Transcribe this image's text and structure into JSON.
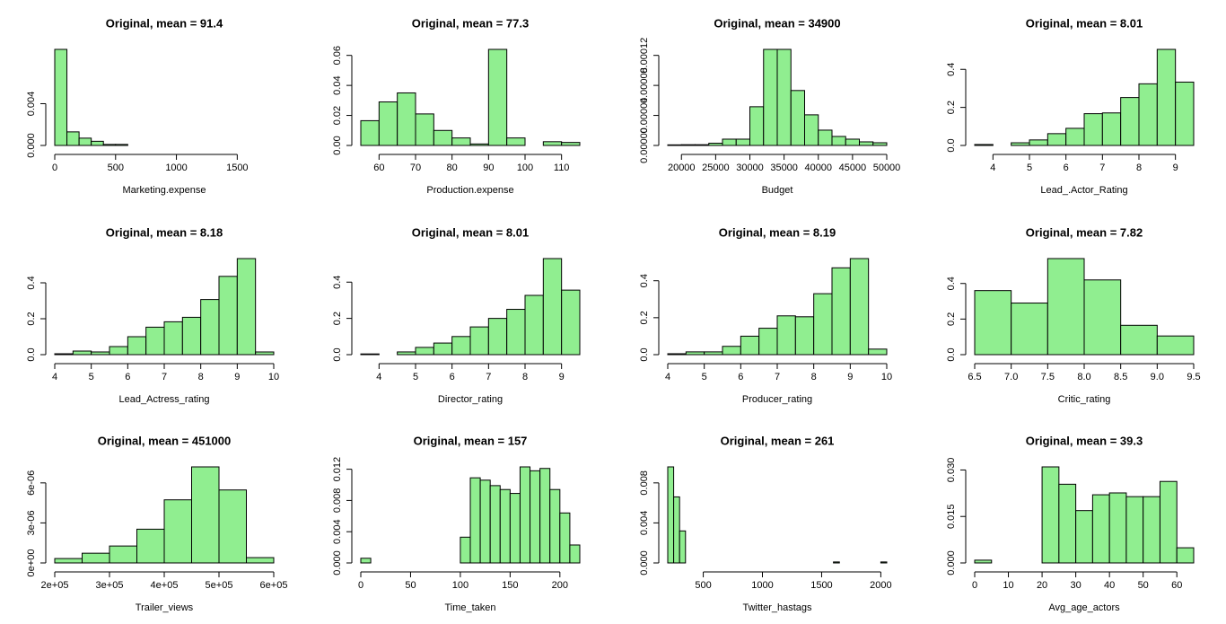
{
  "chart_data": [
    {
      "type": "histogram",
      "title": "Original, mean = 91.4",
      "xlabel": "Marketing.expense",
      "color": "#90ee90",
      "bins": [
        0,
        100,
        200,
        300,
        400,
        500,
        600,
        700,
        800,
        900,
        1000,
        1100,
        1200,
        1300,
        1400,
        1500,
        1600,
        1700,
        1800
      ],
      "values": [
        0.0092,
        0.0013,
        0.0007,
        0.0004,
        0.0001,
        0.0001,
        0,
        0,
        0,
        0,
        0,
        0,
        0,
        0,
        0,
        0,
        0,
        0
      ],
      "xlim": [
        0,
        1800
      ],
      "ylim": [
        0,
        0.0092
      ],
      "xticks": [
        0,
        500,
        1000,
        1500
      ],
      "yticks": [
        {
          "value": 0,
          "label": "0.000"
        },
        0.004
      ]
    },
    {
      "type": "histogram",
      "title": "Original, mean = 77.3",
      "xlabel": "Production.expense",
      "color": "#90ee90",
      "bins": [
        55,
        60,
        65,
        70,
        75,
        80,
        85,
        90,
        95,
        100,
        105,
        110,
        115
      ],
      "values": [
        0.0165,
        0.029,
        0.035,
        0.021,
        0.01,
        0.005,
        0.001,
        0.064,
        0.005,
        0,
        0.0025,
        0.002
      ],
      "xlim": [
        55,
        115
      ],
      "ylim": [
        0,
        0.064
      ],
      "xticks": [
        60,
        70,
        80,
        90,
        100,
        110
      ],
      "yticks": [
        {
          "value": 0,
          "label": "0.00"
        },
        0.02,
        0.04,
        0.06
      ]
    },
    {
      "type": "histogram",
      "title": "Original, mean = 34900",
      "xlabel": "Budget",
      "color": "#90ee90",
      "bins": [
        18000,
        20000,
        22000,
        24000,
        26000,
        28000,
        30000,
        32000,
        34000,
        36000,
        38000,
        40000,
        42000,
        44000,
        46000,
        48000,
        50000
      ],
      "values": [
        8e-07,
        1e-06,
        1e-06,
        3e-06,
        8.4e-06,
        8.4e-06,
        5.16e-05,
        0.000128,
        0.000128,
        7.32e-05,
        4.08e-05,
        2.04e-05,
        1.2e-05,
        8.4e-06,
        4.8e-06,
        3.6e-06
      ],
      "xlim": [
        18000,
        50000
      ],
      "ylim": [
        0,
        0.000128
      ],
      "xticks": [
        20000,
        25000,
        30000,
        35000,
        40000,
        45000,
        50000
      ],
      "yticks": [
        {
          "value": 0,
          "label": "0.00000"
        },
        4e-05,
        8e-05,
        0.00012
      ]
    },
    {
      "type": "histogram",
      "title": "Original, mean = 8.01",
      "xlabel": "Lead_.Actor_Rating",
      "color": "#90ee90",
      "bins": [
        3.5,
        4,
        4.5,
        5,
        5.5,
        6,
        6.5,
        7,
        7.5,
        8,
        8.5,
        9,
        9.5
      ],
      "values": [
        0.005,
        0,
        0.014,
        0.029,
        0.062,
        0.09,
        0.167,
        0.171,
        0.252,
        0.324,
        0.505,
        0.333
      ],
      "xlim": [
        3.5,
        9.5
      ],
      "ylim": [
        0,
        0.505
      ],
      "xticks": [
        4,
        5,
        6,
        7,
        8,
        9
      ],
      "yticks": [
        {
          "value": 0,
          "label": "0.0"
        },
        0.2,
        0.4
      ]
    },
    {
      "type": "histogram",
      "title": "Original, mean = 8.18",
      "xlabel": "Lead_Actress_rating",
      "color": "#90ee90",
      "bins": [
        4,
        4.5,
        5,
        5.5,
        6,
        6.5,
        7,
        7.5,
        8,
        8.5,
        9,
        9.5,
        10
      ],
      "values": [
        0.005,
        0.02,
        0.015,
        0.045,
        0.1,
        0.153,
        0.183,
        0.208,
        0.307,
        0.436,
        0.535,
        0.015
      ],
      "xlim": [
        4,
        10
      ],
      "ylim": [
        0,
        0.535
      ],
      "xticks": [
        4,
        5,
        6,
        7,
        8,
        9,
        10
      ],
      "yticks": [
        {
          "value": 0,
          "label": "0.0"
        },
        0.2,
        0.4
      ]
    },
    {
      "type": "histogram",
      "title": "Original, mean = 8.01",
      "xlabel": "Director_rating",
      "color": "#90ee90",
      "bins": [
        3.5,
        4,
        4.5,
        5,
        5.5,
        6,
        6.5,
        7,
        7.5,
        8,
        8.5,
        9,
        9.5
      ],
      "values": [
        0.004,
        0,
        0.015,
        0.04,
        0.064,
        0.1,
        0.153,
        0.2,
        0.25,
        0.327,
        0.53,
        0.356
      ],
      "xlim": [
        3.5,
        9.5
      ],
      "ylim": [
        0,
        0.53
      ],
      "xticks": [
        4,
        5,
        6,
        7,
        8,
        9
      ],
      "yticks": [
        {
          "value": 0,
          "label": "0.0"
        },
        0.2,
        0.4
      ]
    },
    {
      "type": "histogram",
      "title": "Original, mean = 8.19",
      "xlabel": "Producer_rating",
      "color": "#90ee90",
      "bins": [
        4,
        4.5,
        5,
        5.5,
        6,
        6.5,
        7,
        7.5,
        8,
        8.5,
        9,
        9.5,
        10
      ],
      "values": [
        0.005,
        0.015,
        0.015,
        0.045,
        0.1,
        0.143,
        0.21,
        0.205,
        0.33,
        0.47,
        0.52,
        0.03
      ],
      "xlim": [
        4,
        10
      ],
      "ylim": [
        0,
        0.52
      ],
      "xticks": [
        4,
        5,
        6,
        7,
        8,
        9,
        10
      ],
      "yticks": [
        {
          "value": 0,
          "label": "0.0"
        },
        0.2,
        0.4
      ]
    },
    {
      "type": "histogram",
      "title": "Original, mean = 7.82",
      "xlabel": "Critic_rating",
      "color": "#90ee90",
      "bins": [
        6.5,
        7,
        7.5,
        8,
        8.5,
        9,
        9.5
      ],
      "values": [
        0.36,
        0.29,
        0.54,
        0.42,
        0.165,
        0.105
      ],
      "xlim": [
        6.5,
        9.5
      ],
      "ylim": [
        0,
        0.54
      ],
      "xticks": [
        6.5,
        {
          "value": 7,
          "label": "7.0"
        },
        7.5,
        {
          "value": 8,
          "label": "8.0"
        },
        8.5,
        {
          "value": 9,
          "label": "9.0"
        },
        9.5
      ],
      "yticks": [
        {
          "value": 0,
          "label": "0.0"
        },
        0.2,
        0.4
      ]
    },
    {
      "type": "histogram",
      "title": "Original, mean = 451000",
      "xlabel": "Trailer_views",
      "color": "#90ee90",
      "bins": [
        200000,
        250000,
        300000,
        350000,
        400000,
        450000,
        500000,
        550000,
        600000
      ],
      "values": [
        3.3e-07,
        7.3e-07,
        1.27e-06,
        2.53e-06,
        4.73e-06,
        7.2e-06,
        5.47e-06,
        4e-07
      ],
      "xlim": [
        200000,
        600000
      ],
      "ylim": [
        0,
        7.2e-06
      ],
      "xticks": [
        {
          "value": 200000,
          "label": "2e+05"
        },
        {
          "value": 300000,
          "label": "3e+05"
        },
        {
          "value": 400000,
          "label": "4e+05"
        },
        {
          "value": 500000,
          "label": "5e+05"
        },
        {
          "value": 600000,
          "label": "6e+05"
        }
      ],
      "yticks": [
        {
          "value": 0,
          "label": "0e+00"
        },
        {
          "value": 3e-06,
          "label": "3e-06"
        },
        {
          "value": 6e-06,
          "label": "6e-06"
        }
      ]
    },
    {
      "type": "histogram",
      "title": "Original, mean = 157",
      "xlabel": "Time_taken",
      "color": "#90ee90",
      "bins": [
        0,
        10,
        20,
        30,
        40,
        50,
        60,
        70,
        80,
        90,
        100,
        110,
        120,
        130,
        140,
        150,
        160,
        170,
        180,
        190,
        200,
        210,
        220
      ],
      "values": [
        0.0006,
        0,
        0,
        0,
        0,
        0,
        0,
        0,
        0,
        0,
        0.0033,
        0.0109,
        0.0106,
        0.0099,
        0.0094,
        0.0089,
        0.0123,
        0.0118,
        0.0121,
        0.0094,
        0.0064,
        0.0023
      ],
      "xlim": [
        0,
        220
      ],
      "ylim": [
        0,
        0.0123
      ],
      "xticks": [
        0,
        50,
        100,
        150,
        200
      ],
      "yticks": [
        {
          "value": 0,
          "label": "0.000"
        },
        0.004,
        0.008,
        {
          "value": 0.012,
          "label": "0.012"
        }
      ]
    },
    {
      "type": "histogram",
      "title": "Original, mean = 261",
      "xlabel": "Twitter_hastags",
      "color": "#90ee90",
      "bins": [
        200,
        250,
        300,
        350,
        400,
        450,
        500,
        550,
        600,
        650,
        700,
        750,
        800,
        850,
        900,
        950,
        1000,
        1050,
        1100,
        1150,
        1200,
        1250,
        1300,
        1350,
        1400,
        1450,
        1500,
        1550,
        1600,
        1650,
        1700,
        1750,
        1800,
        1850,
        1900,
        1950,
        2000,
        2050
      ],
      "values": [
        0.0096,
        0.0066,
        0.0032,
        0,
        0,
        0,
        0,
        0,
        0,
        0,
        0,
        0,
        0,
        0,
        0,
        0,
        0,
        0,
        0,
        0,
        0,
        0,
        0,
        0,
        0,
        0,
        0,
        0,
        0.0001,
        0,
        0,
        0,
        0,
        0,
        0,
        0,
        0.0001
      ],
      "xlim": [
        200,
        2050
      ],
      "ylim": [
        0,
        0.0096
      ],
      "xticks": [
        500,
        1000,
        1500,
        2000
      ],
      "yticks": [
        {
          "value": 0,
          "label": "0.000"
        },
        0.004,
        0.008
      ]
    },
    {
      "type": "histogram",
      "title": "Original, mean = 39.3",
      "xlabel": "Avg_age_actors",
      "color": "#90ee90",
      "bins": [
        0,
        5,
        10,
        15,
        20,
        25,
        30,
        35,
        40,
        45,
        50,
        55,
        60,
        65
      ],
      "values": [
        0.0009,
        0,
        0,
        0,
        0.031,
        0.0254,
        0.0169,
        0.022,
        0.0226,
        0.0214,
        0.0214,
        0.0263,
        0.0049
      ],
      "xlim": [
        0,
        65
      ],
      "ylim": [
        0,
        0.031
      ],
      "xticks": [
        0,
        10,
        20,
        30,
        40,
        50,
        60
      ],
      "yticks": [
        {
          "value": 0,
          "label": "0.000"
        },
        0.015,
        {
          "value": 0.03,
          "label": "0.030"
        }
      ]
    }
  ]
}
